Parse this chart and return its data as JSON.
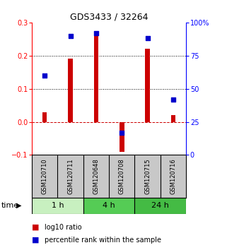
{
  "title": "GDS3433 / 32264",
  "samples": [
    "GSM120710",
    "GSM120711",
    "GSM120648",
    "GSM120708",
    "GSM120715",
    "GSM120716"
  ],
  "log10_ratio": [
    0.03,
    0.19,
    0.26,
    -0.09,
    0.22,
    0.02
  ],
  "percentile_rank": [
    60,
    90,
    92,
    17,
    88,
    42
  ],
  "left_ylim": [
    -0.1,
    0.3
  ],
  "right_ylim": [
    0,
    100
  ],
  "left_yticks": [
    -0.1,
    0.0,
    0.1,
    0.2,
    0.3
  ],
  "right_yticks": [
    0,
    25,
    50,
    75,
    100
  ],
  "dotted_lines": [
    0.1,
    0.2
  ],
  "dashed_zero": 0.0,
  "bar_color": "#cc0000",
  "square_color": "#0000cc",
  "bar_width": 0.18,
  "groups": [
    {
      "label": "1 h",
      "indices": [
        0,
        1
      ],
      "color": "#c8f0c0"
    },
    {
      "label": "4 h",
      "indices": [
        2,
        3
      ],
      "color": "#55cc55"
    },
    {
      "label": "24 h",
      "indices": [
        4,
        5
      ],
      "color": "#44bb44"
    }
  ],
  "legend_bar_label": "log10 ratio",
  "legend_sq_label": "percentile rank within the sample",
  "time_label": "time",
  "bg_color": "#c8c8c8",
  "plot_bg": "#ffffff",
  "title_fontsize": 9,
  "tick_fontsize": 7,
  "label_fontsize": 6,
  "time_fontsize": 8,
  "group_fontsize": 8,
  "legend_fontsize": 7
}
